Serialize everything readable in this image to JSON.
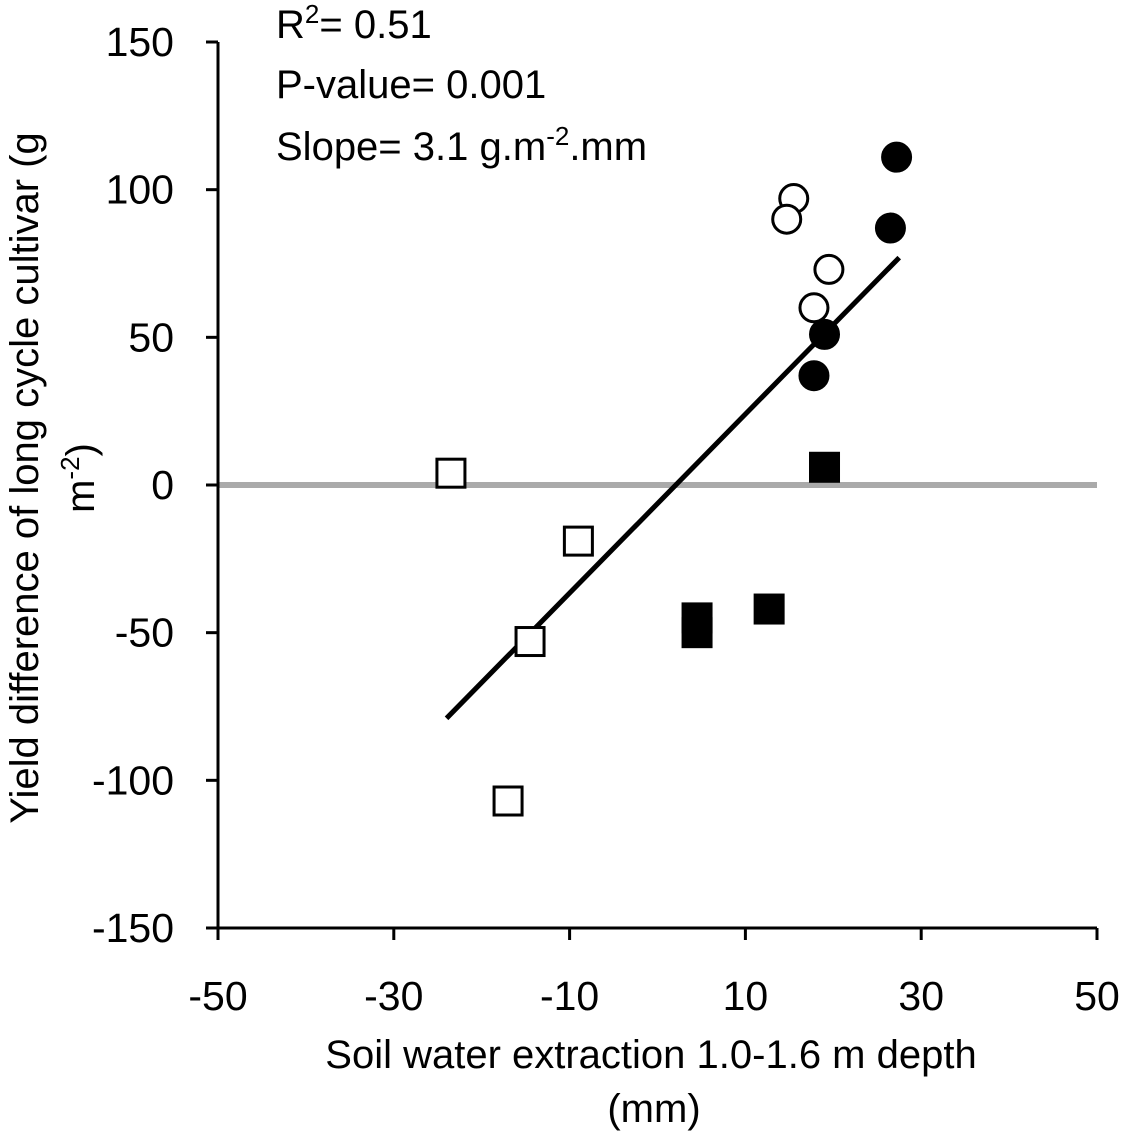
{
  "chart_data": {
    "type": "scatter",
    "title": "",
    "xlabel_line1": "Soil water extraction  1.0-1.6 m depth",
    "xlabel_line2": "(mm)",
    "ylabel_line1": "Yield difference of long cycle cultivar (g",
    "ylabel_line2": "m-2)",
    "xlim": [
      -50,
      50
    ],
    "ylim": [
      -150,
      150
    ],
    "xticks": [
      "-50",
      "-30",
      "-10",
      "10",
      "30",
      "50"
    ],
    "yticks": [
      "150",
      "100",
      "50",
      "0",
      "-50",
      "-100",
      "-150"
    ],
    "grid": false,
    "annotations": {
      "r2": "R2= 0.51",
      "pvalue": "P-value= 0.001",
      "slope": "Slope= 3.1 g.m-2.mm"
    },
    "zero_line": {
      "y": 0,
      "color": "#aaaaaa"
    },
    "regression": {
      "x": [
        -24,
        27.5
      ],
      "y": [
        -79,
        77
      ],
      "color": "#000000"
    },
    "series": [
      {
        "name": "open circles",
        "marker": "circle",
        "filled": false,
        "points": [
          [
            15.5,
            97
          ],
          [
            14.7,
            90
          ],
          [
            19.5,
            73
          ],
          [
            17.8,
            60
          ]
        ]
      },
      {
        "name": "filled circles",
        "marker": "circle",
        "filled": true,
        "points": [
          [
            27.2,
            111
          ],
          [
            26.5,
            87
          ],
          [
            19,
            51
          ],
          [
            17.8,
            37
          ]
        ]
      },
      {
        "name": "open squares",
        "marker": "square",
        "filled": false,
        "points": [
          [
            -23.5,
            4
          ],
          [
            -9,
            -19
          ],
          [
            -14.5,
            -53
          ],
          [
            -17,
            -107
          ]
        ]
      },
      {
        "name": "filled squares",
        "marker": "square",
        "filled": true,
        "points": [
          [
            19,
            6
          ],
          [
            12.7,
            -42
          ],
          [
            4.5,
            -45
          ],
          [
            4.5,
            -50
          ]
        ]
      }
    ]
  },
  "colors": {
    "marker": "#000000",
    "axis": "#000000",
    "zero_line": "#aaaaaa"
  }
}
